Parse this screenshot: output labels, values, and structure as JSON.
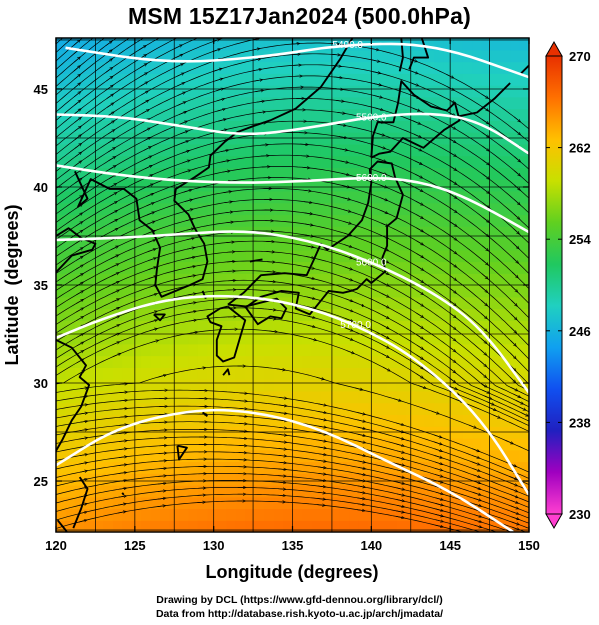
{
  "title": "MSM 15Z17Jan2024 (500.0hPa)",
  "footer": {
    "line1": "Drawing by DCL (https://www.gfd-dennou.org/library/dcl/)",
    "line2": "Data from http://database.rish.kyoto-u.ac.jp/arch/jmadata/"
  },
  "map": {
    "xlabel": "Longitude (degrees)",
    "ylabel": "Latitude  (degrees)",
    "xlim": [
      120,
      150
    ],
    "ylim": [
      22.4,
      47.6
    ],
    "xticks": [
      120,
      125,
      130,
      135,
      140,
      145,
      150
    ],
    "yticks": [
      25,
      30,
      35,
      40,
      45
    ],
    "gridlines": true,
    "field": "temperature (shaded) with wind streamlines and geopotential height contours",
    "colorbar": {
      "ticks": [
        230,
        238,
        246,
        254,
        262,
        270
      ],
      "min": 230,
      "max": 270,
      "colors": [
        "#ff3fd0",
        "#a000c0",
        "#2020c0",
        "#1050f0",
        "#10a0f0",
        "#20d0c0",
        "#20c860",
        "#60d020",
        "#c8e000",
        "#ffc000",
        "#ff7000",
        "#e83000"
      ]
    },
    "contours": [
      {
        "label": "5400.0",
        "points": [
          [
            120.6,
            47.1
          ],
          [
            127,
            46.3
          ],
          [
            133,
            46.6
          ],
          [
            138.5,
            47.3
          ],
          [
            144,
            47.3
          ],
          [
            150,
            45.6
          ]
        ]
      },
      {
        "label": "5500.0",
        "points": [
          [
            120,
            43.7
          ],
          [
            124,
            43.6
          ],
          [
            128,
            43.1
          ],
          [
            132,
            42.6
          ],
          [
            136,
            43.0
          ],
          [
            140,
            43.6
          ],
          [
            144,
            43.8
          ],
          [
            147,
            43.3
          ],
          [
            150,
            41.7
          ]
        ]
      },
      {
        "label": "5600.0",
        "points": [
          [
            120,
            41.1
          ],
          [
            124,
            40.6
          ],
          [
            128,
            40.3
          ],
          [
            132,
            40.2
          ],
          [
            136,
            40.3
          ],
          [
            140,
            40.5
          ],
          [
            143,
            40.3
          ],
          [
            146,
            39.5
          ],
          [
            150,
            37.7
          ]
        ]
      },
      {
        "label": "5600.0",
        "points": [
          [
            120,
            37.3
          ],
          [
            124,
            37.4
          ],
          [
            128,
            37.6
          ],
          [
            132,
            37.8
          ],
          [
            136,
            37.3
          ],
          [
            140,
            36.2
          ],
          [
            144,
            34.6
          ],
          [
            147,
            32.8
          ],
          [
            150,
            29.5
          ]
        ]
      },
      {
        "label": "5700.0",
        "points": [
          [
            120,
            32.3
          ],
          [
            123,
            33.3
          ],
          [
            127,
            34.3
          ],
          [
            131,
            34.5
          ],
          [
            135,
            34.1
          ],
          [
            139,
            33.0
          ],
          [
            143,
            31.2
          ],
          [
            147,
            28.2
          ],
          [
            150,
            24.3
          ]
        ]
      },
      {
        "label": "",
        "points": [
          [
            120,
            25.8
          ],
          [
            124,
            27.8
          ],
          [
            129,
            28.7
          ],
          [
            133,
            28.5
          ],
          [
            137,
            27.6
          ],
          [
            141,
            26.0
          ],
          [
            145,
            24.5
          ],
          [
            149,
            22.4
          ]
        ]
      }
    ]
  }
}
